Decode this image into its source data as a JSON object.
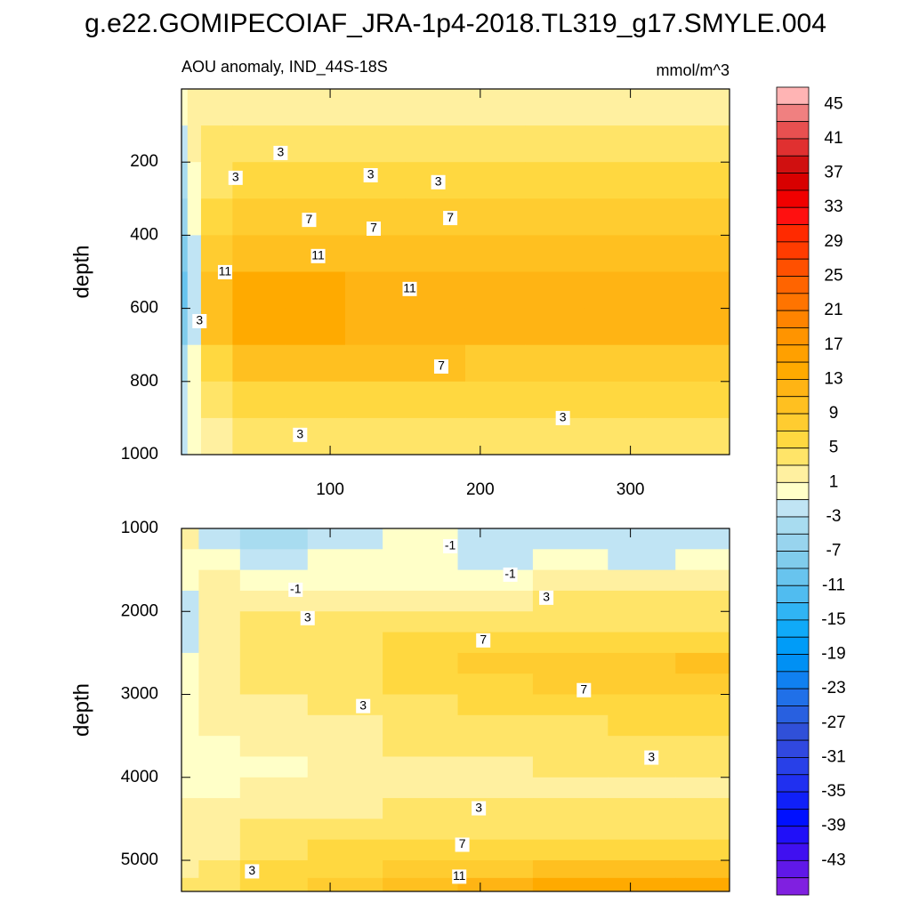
{
  "title": "g.e22.GOMIPECOIAF_JRA-1p4-2018.TL319_g17.SMYLE.004",
  "colorbar": {
    "lim": [
      -47,
      47
    ],
    "ticks": [
      45,
      41,
      37,
      33,
      29,
      25,
      21,
      17,
      13,
      9,
      5,
      1,
      -3,
      -7,
      -11,
      -15,
      -19,
      -23,
      -27,
      -31,
      -35,
      -39,
      -43
    ],
    "colors": [
      "#ffb4b4",
      "#f08080",
      "#e85050",
      "#e03030",
      "#d01010",
      "#d80000",
      "#f00000",
      "#ff1010",
      "#ff2a00",
      "#ff3c00",
      "#ff5000",
      "#ff6400",
      "#ff7400",
      "#ff8400",
      "#ff9400",
      "#ffa000",
      "#ffaa00",
      "#ffb414",
      "#ffc020",
      "#ffcc30",
      "#ffd840",
      "#ffe468",
      "#fff0a0",
      "#ffffc8",
      "#c0e4f4",
      "#a8dcf0",
      "#98d4ee",
      "#80ccec",
      "#68c4ee",
      "#50bcf0",
      "#30b4f4",
      "#10aaf8",
      "#009cf8",
      "#0090f4",
      "#1080f0",
      "#2070e8",
      "#2860e0",
      "#3050d8",
      "#3048e0",
      "#2840e8",
      "#2030f0",
      "#1020f8",
      "#0010ff",
      "#2010f8",
      "#4010f0",
      "#6018e8",
      "#8020e0"
    ]
  },
  "chart_data": [
    {
      "type": "contour",
      "subtitle": "AOU anomaly, IND_44S-18S",
      "units": "mmol/m^3",
      "ylabel": "depth",
      "xlim": [
        1,
        366
      ],
      "ylim": [
        0,
        1000
      ],
      "xticks": [
        100,
        200,
        300
      ],
      "yticks": [
        200,
        400,
        600,
        800,
        1000
      ],
      "x": [
        2,
        8,
        20,
        50,
        90,
        130,
        170,
        210,
        250,
        290,
        330,
        360
      ],
      "depth": [
        50,
        150,
        250,
        350,
        450,
        550,
        650,
        750,
        850,
        950
      ],
      "z": [
        [
          0,
          1,
          2,
          2,
          2,
          2,
          2,
          2,
          2,
          2,
          2,
          2
        ],
        [
          -2,
          1,
          3,
          3,
          3,
          3,
          3,
          3,
          3,
          3,
          3,
          3
        ],
        [
          -4,
          0,
          4,
          5,
          5,
          5,
          5,
          5,
          5,
          5,
          5,
          5
        ],
        [
          -6,
          -1,
          5,
          7,
          7,
          7,
          7,
          7,
          7,
          7,
          7,
          7
        ],
        [
          -8,
          -2,
          7,
          10,
          10,
          9,
          9,
          9,
          9,
          9,
          9,
          9
        ],
        [
          -10,
          -2,
          9,
          13,
          13,
          12,
          12,
          11,
          11,
          11,
          11,
          11
        ],
        [
          -8,
          -2,
          9,
          13,
          13,
          12,
          11,
          11,
          11,
          11,
          11,
          11
        ],
        [
          -4,
          0,
          6,
          10,
          9,
          9,
          9,
          8,
          8,
          8,
          8,
          8
        ],
        [
          -2,
          0,
          3,
          6,
          6,
          6,
          6,
          5,
          5,
          5,
          5,
          5
        ],
        [
          -2,
          -1,
          1,
          3,
          3,
          3,
          3,
          3,
          3,
          3,
          3,
          3
        ]
      ],
      "contour_labels": [
        {
          "value": 3,
          "x": 37,
          "depth": 243
        },
        {
          "value": 3,
          "x": 67,
          "depth": 175
        },
        {
          "value": 3,
          "x": 127,
          "depth": 236
        },
        {
          "value": 3,
          "x": 172,
          "depth": 255
        },
        {
          "value": 7,
          "x": 86,
          "depth": 358
        },
        {
          "value": 7,
          "x": 129,
          "depth": 382
        },
        {
          "value": 7,
          "x": 180,
          "depth": 353
        },
        {
          "value": 11,
          "x": 92,
          "depth": 457
        },
        {
          "value": 11,
          "x": 153,
          "depth": 547
        },
        {
          "value": 11,
          "x": 30,
          "depth": 501
        },
        {
          "value": 3,
          "x": 13,
          "depth": 635
        },
        {
          "value": 7,
          "x": 174,
          "depth": 759
        },
        {
          "value": 3,
          "x": 255,
          "depth": 900
        },
        {
          "value": 3,
          "x": 80,
          "depth": 946
        }
      ]
    },
    {
      "type": "contour",
      "ylabel": "depth",
      "xlim": [
        1,
        366
      ],
      "ylim": [
        1000,
        5375
      ],
      "yticks": [
        1000,
        2000,
        3000,
        4000,
        5000
      ],
      "x": [
        5,
        20,
        60,
        110,
        160,
        210,
        260,
        310,
        350
      ],
      "depth": [
        1125,
        1375,
        1625,
        1875,
        2125,
        2375,
        2625,
        2875,
        3125,
        3375,
        3625,
        3875,
        4125,
        4375,
        4625,
        4875,
        5125,
        5300
      ],
      "z": [
        [
          1,
          -2,
          -4,
          -2,
          -1,
          -2,
          -2,
          -3,
          -2
        ],
        [
          0,
          -1,
          -3,
          -1,
          -1,
          -2,
          -1,
          -2,
          -1
        ],
        [
          0,
          1,
          -1,
          0,
          0,
          0,
          1,
          1,
          1
        ],
        [
          -2,
          2,
          2,
          2,
          2,
          2,
          3,
          3,
          3
        ],
        [
          -2,
          2,
          3,
          3,
          4,
          4,
          4,
          4,
          4
        ],
        [
          -2,
          1,
          4,
          4,
          5,
          6,
          6,
          6,
          6
        ],
        [
          0,
          1,
          4,
          4,
          6,
          7,
          8,
          8,
          9
        ],
        [
          0,
          1,
          3,
          4,
          5,
          6,
          7,
          7,
          8
        ],
        [
          0,
          1,
          2,
          3,
          4,
          5,
          5,
          6,
          6
        ],
        [
          0,
          1,
          2,
          2,
          3,
          4,
          4,
          5,
          5
        ],
        [
          0,
          0,
          1,
          2,
          3,
          3,
          4,
          4,
          4
        ],
        [
          0,
          0,
          0,
          1,
          2,
          2,
          3,
          3,
          3
        ],
        [
          0,
          0,
          1,
          1,
          2,
          2,
          2,
          2,
          2
        ],
        [
          1,
          1,
          2,
          2,
          3,
          3,
          3,
          3,
          3
        ],
        [
          1,
          2,
          3,
          3,
          4,
          4,
          4,
          4,
          4
        ],
        [
          1,
          2,
          4,
          5,
          5,
          6,
          6,
          6,
          6
        ],
        [
          2,
          3,
          5,
          6,
          7,
          8,
          9,
          9,
          9
        ],
        [
          3,
          4,
          6,
          8,
          10,
          12,
          13,
          13,
          13
        ]
      ],
      "contour_labels": [
        {
          "value": -1,
          "x": 180,
          "depth": 1214
        },
        {
          "value": -1,
          "x": 220,
          "depth": 1557
        },
        {
          "value": -1,
          "x": 77,
          "depth": 1739
        },
        {
          "value": 3,
          "x": 244,
          "depth": 1835
        },
        {
          "value": 3,
          "x": 85,
          "depth": 2081
        },
        {
          "value": 7,
          "x": 202,
          "depth": 2349
        },
        {
          "value": 7,
          "x": 269,
          "depth": 2949
        },
        {
          "value": 3,
          "x": 122,
          "depth": 3141
        },
        {
          "value": 3,
          "x": 314,
          "depth": 3762
        },
        {
          "value": 3,
          "x": 199,
          "depth": 4373
        },
        {
          "value": 7,
          "x": 188,
          "depth": 4812
        },
        {
          "value": 11,
          "x": 186,
          "depth": 5197
        },
        {
          "value": 3,
          "x": 48,
          "depth": 5133
        }
      ]
    }
  ]
}
